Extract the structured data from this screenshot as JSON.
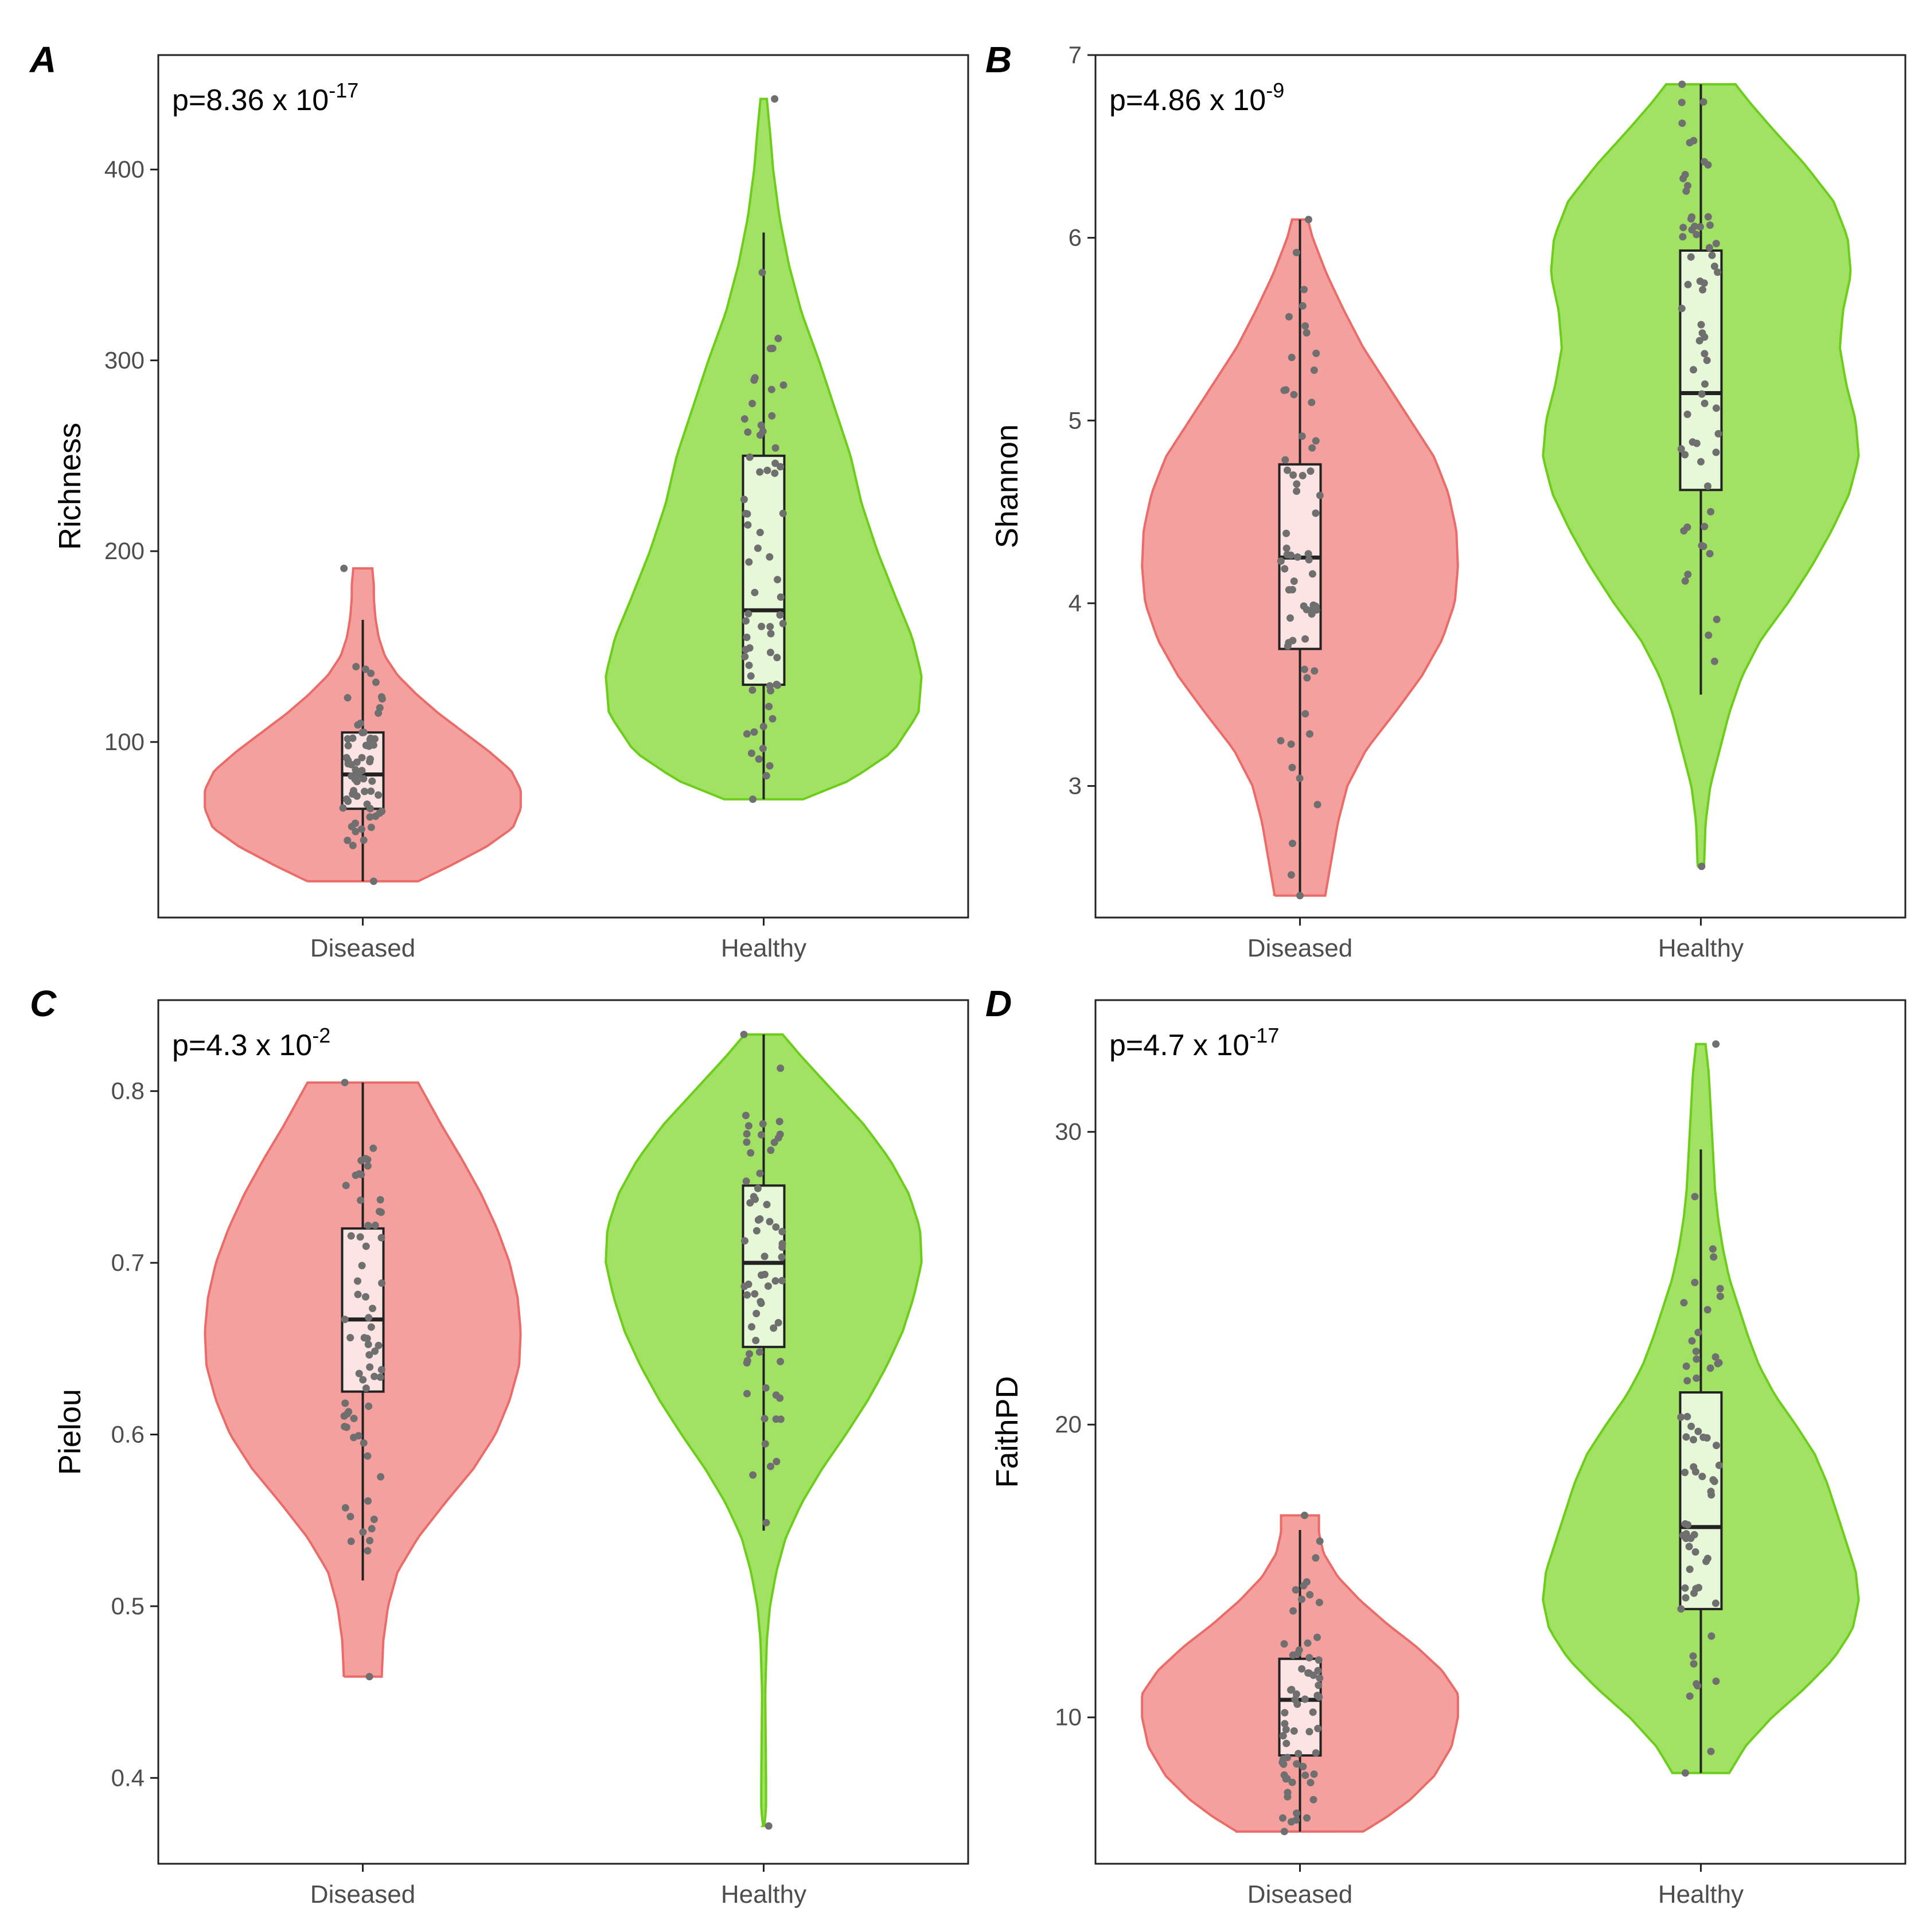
{
  "figure": {
    "colors": {
      "diseased_fill": "#f4a09e",
      "diseased_stroke": "#ea6b67",
      "diseased_box": "#fbe4e3",
      "healthy_fill": "#a1e264",
      "healthy_stroke": "#6ccd1a",
      "healthy_box": "#e6f8d7",
      "point": "#6f6f6f",
      "axis": "#000000",
      "tick_text": "#4d4d4d"
    }
  },
  "chart_data": [
    {
      "panel": "A",
      "type": "violin",
      "ylabel": "Richness",
      "categories": [
        "Diseased",
        "Healthy"
      ],
      "ylim": [
        8,
        460
      ],
      "yticks": [
        100,
        200,
        300,
        400
      ],
      "annotation": {
        "base": "p=8.36 x 10",
        "exp": "-17"
      },
      "series": [
        {
          "name": "Diseased",
          "min": 27,
          "max": 191,
          "q1": 65,
          "median": 83,
          "q3": 105,
          "whisker_low": 27,
          "whisker_high": 164,
          "density": [
            [
              27,
              0.35
            ],
            [
              35,
              0.55
            ],
            [
              45,
              0.78
            ],
            [
              55,
              0.95
            ],
            [
              65,
              1.0
            ],
            [
              75,
              1.0
            ],
            [
              85,
              0.94
            ],
            [
              95,
              0.8
            ],
            [
              105,
              0.64
            ],
            [
              115,
              0.48
            ],
            [
              125,
              0.34
            ],
            [
              135,
              0.22
            ],
            [
              145,
              0.14
            ],
            [
              155,
              0.1
            ],
            [
              165,
              0.08
            ],
            [
              175,
              0.07
            ],
            [
              182,
              0.07
            ],
            [
              191,
              0.06
            ]
          ]
        },
        {
          "name": "Healthy",
          "min": 70,
          "max": 437,
          "q1": 130,
          "median": 169,
          "q3": 250,
          "whisker_low": 70,
          "whisker_high": 367,
          "density": [
            [
              70,
              0.25
            ],
            [
              80,
              0.55
            ],
            [
              95,
              0.82
            ],
            [
              115,
              0.98
            ],
            [
              135,
              1.0
            ],
            [
              155,
              0.94
            ],
            [
              175,
              0.84
            ],
            [
              200,
              0.72
            ],
            [
              225,
              0.62
            ],
            [
              250,
              0.55
            ],
            [
              275,
              0.45
            ],
            [
              300,
              0.35
            ],
            [
              325,
              0.24
            ],
            [
              350,
              0.16
            ],
            [
              375,
              0.1
            ],
            [
              400,
              0.06
            ],
            [
              420,
              0.04
            ],
            [
              437,
              0.02
            ]
          ]
        }
      ]
    },
    {
      "panel": "B",
      "type": "violin",
      "ylabel": "Shannon",
      "categories": [
        "Diseased",
        "Healthy"
      ],
      "ylim": [
        2.28,
        7.0
      ],
      "yticks": [
        3,
        4,
        5,
        6,
        7
      ],
      "annotation": {
        "base": "p=4.86 x 10",
        "exp": "-9"
      },
      "series": [
        {
          "name": "Diseased",
          "min": 2.4,
          "max": 6.1,
          "q1": 3.75,
          "median": 4.25,
          "q3": 4.76,
          "whisker_low": 2.4,
          "whisker_high": 6.1,
          "density": [
            [
              2.4,
              0.16
            ],
            [
              2.6,
              0.2
            ],
            [
              2.8,
              0.24
            ],
            [
              3.0,
              0.3
            ],
            [
              3.2,
              0.42
            ],
            [
              3.4,
              0.6
            ],
            [
              3.6,
              0.77
            ],
            [
              3.8,
              0.9
            ],
            [
              4.0,
              0.98
            ],
            [
              4.2,
              1.0
            ],
            [
              4.4,
              0.99
            ],
            [
              4.6,
              0.94
            ],
            [
              4.8,
              0.85
            ],
            [
              5.0,
              0.7
            ],
            [
              5.2,
              0.55
            ],
            [
              5.4,
              0.4
            ],
            [
              5.6,
              0.28
            ],
            [
              5.8,
              0.17
            ],
            [
              6.0,
              0.08
            ],
            [
              6.1,
              0.05
            ]
          ]
        },
        {
          "name": "Healthy",
          "min": 2.56,
          "max": 6.84,
          "q1": 4.62,
          "median": 5.15,
          "q3": 5.93,
          "whisker_low": 3.5,
          "whisker_high": 6.84,
          "density": [
            [
              2.56,
              0.02
            ],
            [
              2.8,
              0.03
            ],
            [
              3.0,
              0.06
            ],
            [
              3.2,
              0.12
            ],
            [
              3.4,
              0.18
            ],
            [
              3.6,
              0.26
            ],
            [
              3.8,
              0.38
            ],
            [
              4.0,
              0.55
            ],
            [
              4.2,
              0.7
            ],
            [
              4.4,
              0.83
            ],
            [
              4.6,
              0.94
            ],
            [
              4.8,
              1.0
            ],
            [
              5.0,
              0.98
            ],
            [
              5.2,
              0.92
            ],
            [
              5.4,
              0.88
            ],
            [
              5.6,
              0.9
            ],
            [
              5.8,
              0.95
            ],
            [
              6.0,
              0.93
            ],
            [
              6.2,
              0.84
            ],
            [
              6.4,
              0.66
            ],
            [
              6.6,
              0.45
            ],
            [
              6.75,
              0.3
            ],
            [
              6.84,
              0.22
            ]
          ]
        }
      ]
    },
    {
      "panel": "C",
      "type": "violin",
      "ylabel": "Pielou",
      "categories": [
        "Diseased",
        "Healthy"
      ],
      "ylim": [
        0.35,
        0.853
      ],
      "yticks": [
        0.4,
        0.5,
        0.6,
        0.7,
        0.8
      ],
      "annotation": {
        "base": "p=4.3 x 10",
        "exp": "-2"
      },
      "series": [
        {
          "name": "Diseased",
          "min": 0.459,
          "max": 0.805,
          "q1": 0.625,
          "median": 0.667,
          "q3": 0.72,
          "whisker_low": 0.515,
          "whisker_high": 0.805,
          "density": [
            [
              0.459,
              0.12
            ],
            [
              0.48,
              0.13
            ],
            [
              0.5,
              0.16
            ],
            [
              0.52,
              0.22
            ],
            [
              0.54,
              0.35
            ],
            [
              0.56,
              0.52
            ],
            [
              0.58,
              0.7
            ],
            [
              0.6,
              0.84
            ],
            [
              0.62,
              0.93
            ],
            [
              0.64,
              0.99
            ],
            [
              0.66,
              1.0
            ],
            [
              0.68,
              0.98
            ],
            [
              0.7,
              0.93
            ],
            [
              0.72,
              0.85
            ],
            [
              0.74,
              0.75
            ],
            [
              0.76,
              0.63
            ],
            [
              0.78,
              0.5
            ],
            [
              0.8,
              0.38
            ],
            [
              0.805,
              0.35
            ]
          ]
        },
        {
          "name": "Healthy",
          "min": 0.372,
          "max": 0.833,
          "q1": 0.651,
          "median": 0.7,
          "q3": 0.745,
          "whisker_low": 0.544,
          "whisker_high": 0.833,
          "density": [
            [
              0.372,
              0.0
            ],
            [
              0.38,
              0.015
            ],
            [
              0.4,
              0.015
            ],
            [
              0.45,
              0.01
            ],
            [
              0.48,
              0.02
            ],
            [
              0.5,
              0.04
            ],
            [
              0.52,
              0.08
            ],
            [
              0.54,
              0.14
            ],
            [
              0.56,
              0.24
            ],
            [
              0.58,
              0.37
            ],
            [
              0.6,
              0.52
            ],
            [
              0.62,
              0.66
            ],
            [
              0.64,
              0.78
            ],
            [
              0.66,
              0.88
            ],
            [
              0.68,
              0.95
            ],
            [
              0.7,
              1.0
            ],
            [
              0.72,
              0.99
            ],
            [
              0.74,
              0.92
            ],
            [
              0.76,
              0.8
            ],
            [
              0.78,
              0.64
            ],
            [
              0.8,
              0.44
            ],
            [
              0.82,
              0.24
            ],
            [
              0.833,
              0.12
            ]
          ]
        }
      ]
    },
    {
      "panel": "D",
      "type": "violin",
      "ylabel": "FaithPD",
      "categories": [
        "Diseased",
        "Healthy"
      ],
      "ylim": [
        5.0,
        34.5
      ],
      "yticks": [
        10,
        20,
        30
      ],
      "annotation": {
        "base": "p=4.7 x 10",
        "exp": "-17"
      },
      "series": [
        {
          "name": "Diseased",
          "min": 6.1,
          "max": 16.9,
          "q1": 8.7,
          "median": 10.6,
          "q3": 12.0,
          "whisker_low": 6.1,
          "whisker_high": 16.4,
          "density": [
            [
              6.1,
              0.4
            ],
            [
              6.6,
              0.55
            ],
            [
              7.2,
              0.7
            ],
            [
              8.0,
              0.85
            ],
            [
              9.0,
              0.96
            ],
            [
              10.0,
              1.0
            ],
            [
              10.8,
              1.0
            ],
            [
              11.6,
              0.9
            ],
            [
              12.4,
              0.74
            ],
            [
              13.2,
              0.55
            ],
            [
              14.0,
              0.38
            ],
            [
              14.8,
              0.24
            ],
            [
              15.6,
              0.15
            ],
            [
              16.3,
              0.12
            ],
            [
              16.9,
              0.12
            ]
          ]
        },
        {
          "name": "Healthy",
          "min": 8.1,
          "max": 33.0,
          "q1": 13.7,
          "median": 16.5,
          "q3": 21.1,
          "whisker_low": 8.1,
          "whisker_high": 29.4,
          "density": [
            [
              8.1,
              0.18
            ],
            [
              9.0,
              0.28
            ],
            [
              10.0,
              0.45
            ],
            [
              11.0,
              0.66
            ],
            [
              12.0,
              0.84
            ],
            [
              13.0,
              0.96
            ],
            [
              14.0,
              1.0
            ],
            [
              15.0,
              0.98
            ],
            [
              16.0,
              0.92
            ],
            [
              17.0,
              0.86
            ],
            [
              18.0,
              0.8
            ],
            [
              19.0,
              0.72
            ],
            [
              20.0,
              0.6
            ],
            [
              21.0,
              0.47
            ],
            [
              22.0,
              0.37
            ],
            [
              23.0,
              0.3
            ],
            [
              24.0,
              0.24
            ],
            [
              25.0,
              0.18
            ],
            [
              26.0,
              0.14
            ],
            [
              27.0,
              0.11
            ],
            [
              28.0,
              0.09
            ],
            [
              29.0,
              0.08
            ],
            [
              30.0,
              0.07
            ],
            [
              31.0,
              0.06
            ],
            [
              32.0,
              0.05
            ],
            [
              33.0,
              0.03
            ]
          ]
        }
      ]
    }
  ]
}
